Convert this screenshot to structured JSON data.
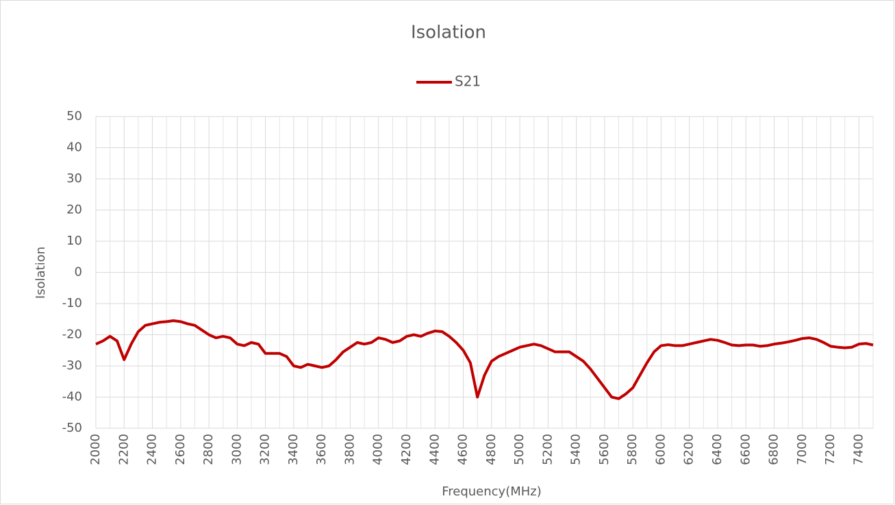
{
  "chart_data": {
    "type": "line",
    "title": "Isolation",
    "xlabel": "Frequency(MHz)",
    "ylabel": "Isolation",
    "x": [
      2000,
      2050,
      2100,
      2150,
      2200,
      2250,
      2300,
      2350,
      2400,
      2450,
      2500,
      2550,
      2600,
      2650,
      2700,
      2750,
      2800,
      2850,
      2900,
      2950,
      3000,
      3050,
      3100,
      3150,
      3200,
      3250,
      3300,
      3350,
      3400,
      3450,
      3500,
      3550,
      3600,
      3650,
      3700,
      3750,
      3800,
      3850,
      3900,
      3950,
      4000,
      4050,
      4100,
      4150,
      4200,
      4250,
      4300,
      4350,
      4400,
      4450,
      4500,
      4550,
      4600,
      4650,
      4700,
      4750,
      4800,
      4850,
      4900,
      4950,
      5000,
      5050,
      5100,
      5150,
      5200,
      5250,
      5300,
      5350,
      5400,
      5450,
      5500,
      5550,
      5600,
      5650,
      5700,
      5750,
      5800,
      5850,
      5900,
      5950,
      6000,
      6050,
      6100,
      6150,
      6200,
      6250,
      6300,
      6350,
      6400,
      6450,
      6500,
      6550,
      6600,
      6650,
      6700,
      6750,
      6800,
      6850,
      6900,
      6950,
      7000,
      7050,
      7100,
      7150,
      7200,
      7250,
      7300,
      7350,
      7400,
      7450,
      7500
    ],
    "series": [
      {
        "name": "S21",
        "color": "#c00000",
        "values": [
          -23,
          -22,
          -20.5,
          -22,
          -28,
          -23,
          -19,
          -17,
          -16.5,
          -16,
          -15.8,
          -15.5,
          -15.8,
          -16.5,
          -17,
          -18.5,
          -20,
          -21,
          -20.5,
          -21,
          -23,
          -23.5,
          -22.5,
          -23,
          -26,
          -26,
          -26,
          -27,
          -30,
          -30.5,
          -29.5,
          -30,
          -30.5,
          -30,
          -28,
          -25.5,
          -24,
          -22.5,
          -23,
          -22.5,
          -21,
          -21.5,
          -22.5,
          -22,
          -20.5,
          -20,
          -20.5,
          -19.5,
          -18.8,
          -19,
          -20.5,
          -22.5,
          -25,
          -29,
          -40,
          -33,
          -28.5,
          -27,
          -26,
          -25,
          -24,
          -23.5,
          -23,
          -23.5,
          -24.5,
          -25.5,
          -25.5,
          -25.5,
          -27,
          -28.5,
          -31,
          -34,
          -37,
          -40,
          -40.5,
          -39,
          -37,
          -33,
          -29,
          -25.5,
          -23.5,
          -23.2,
          -23.5,
          -23.5,
          -23,
          -22.5,
          -22,
          -21.5,
          -21.8,
          -22.5,
          -23.3,
          -23.5,
          -23.3,
          -23.3,
          -23.7,
          -23.5,
          -23,
          -22.7,
          -22.3,
          -21.8,
          -21.2,
          -21,
          -21.5,
          -22.5,
          -23.7,
          -24,
          -24.2,
          -24,
          -23,
          -22.8,
          -23.3
        ]
      }
    ],
    "xlim": [
      2000,
      7500
    ],
    "xticks": [
      2000,
      2200,
      2400,
      2600,
      2800,
      3000,
      3200,
      3400,
      3600,
      3800,
      4000,
      4200,
      4400,
      4600,
      4800,
      5000,
      5200,
      5400,
      5600,
      5800,
      6000,
      6200,
      6400,
      6600,
      6800,
      7000,
      7200,
      7400
    ],
    "xminorticks": [
      2100,
      2300,
      2500,
      2700,
      2900,
      3100,
      3300,
      3500,
      3700,
      3900,
      4100,
      4300,
      4500,
      4700,
      4900,
      5100,
      5300,
      5500,
      5700,
      5900,
      6100,
      6300,
      6500,
      6700,
      6900,
      7100,
      7300,
      7500
    ],
    "ylim": [
      -50,
      50
    ],
    "yticks": [
      -50,
      -40,
      -30,
      -20,
      -10,
      0,
      10,
      20,
      30,
      40,
      50
    ],
    "grid": true,
    "legend": "top"
  }
}
